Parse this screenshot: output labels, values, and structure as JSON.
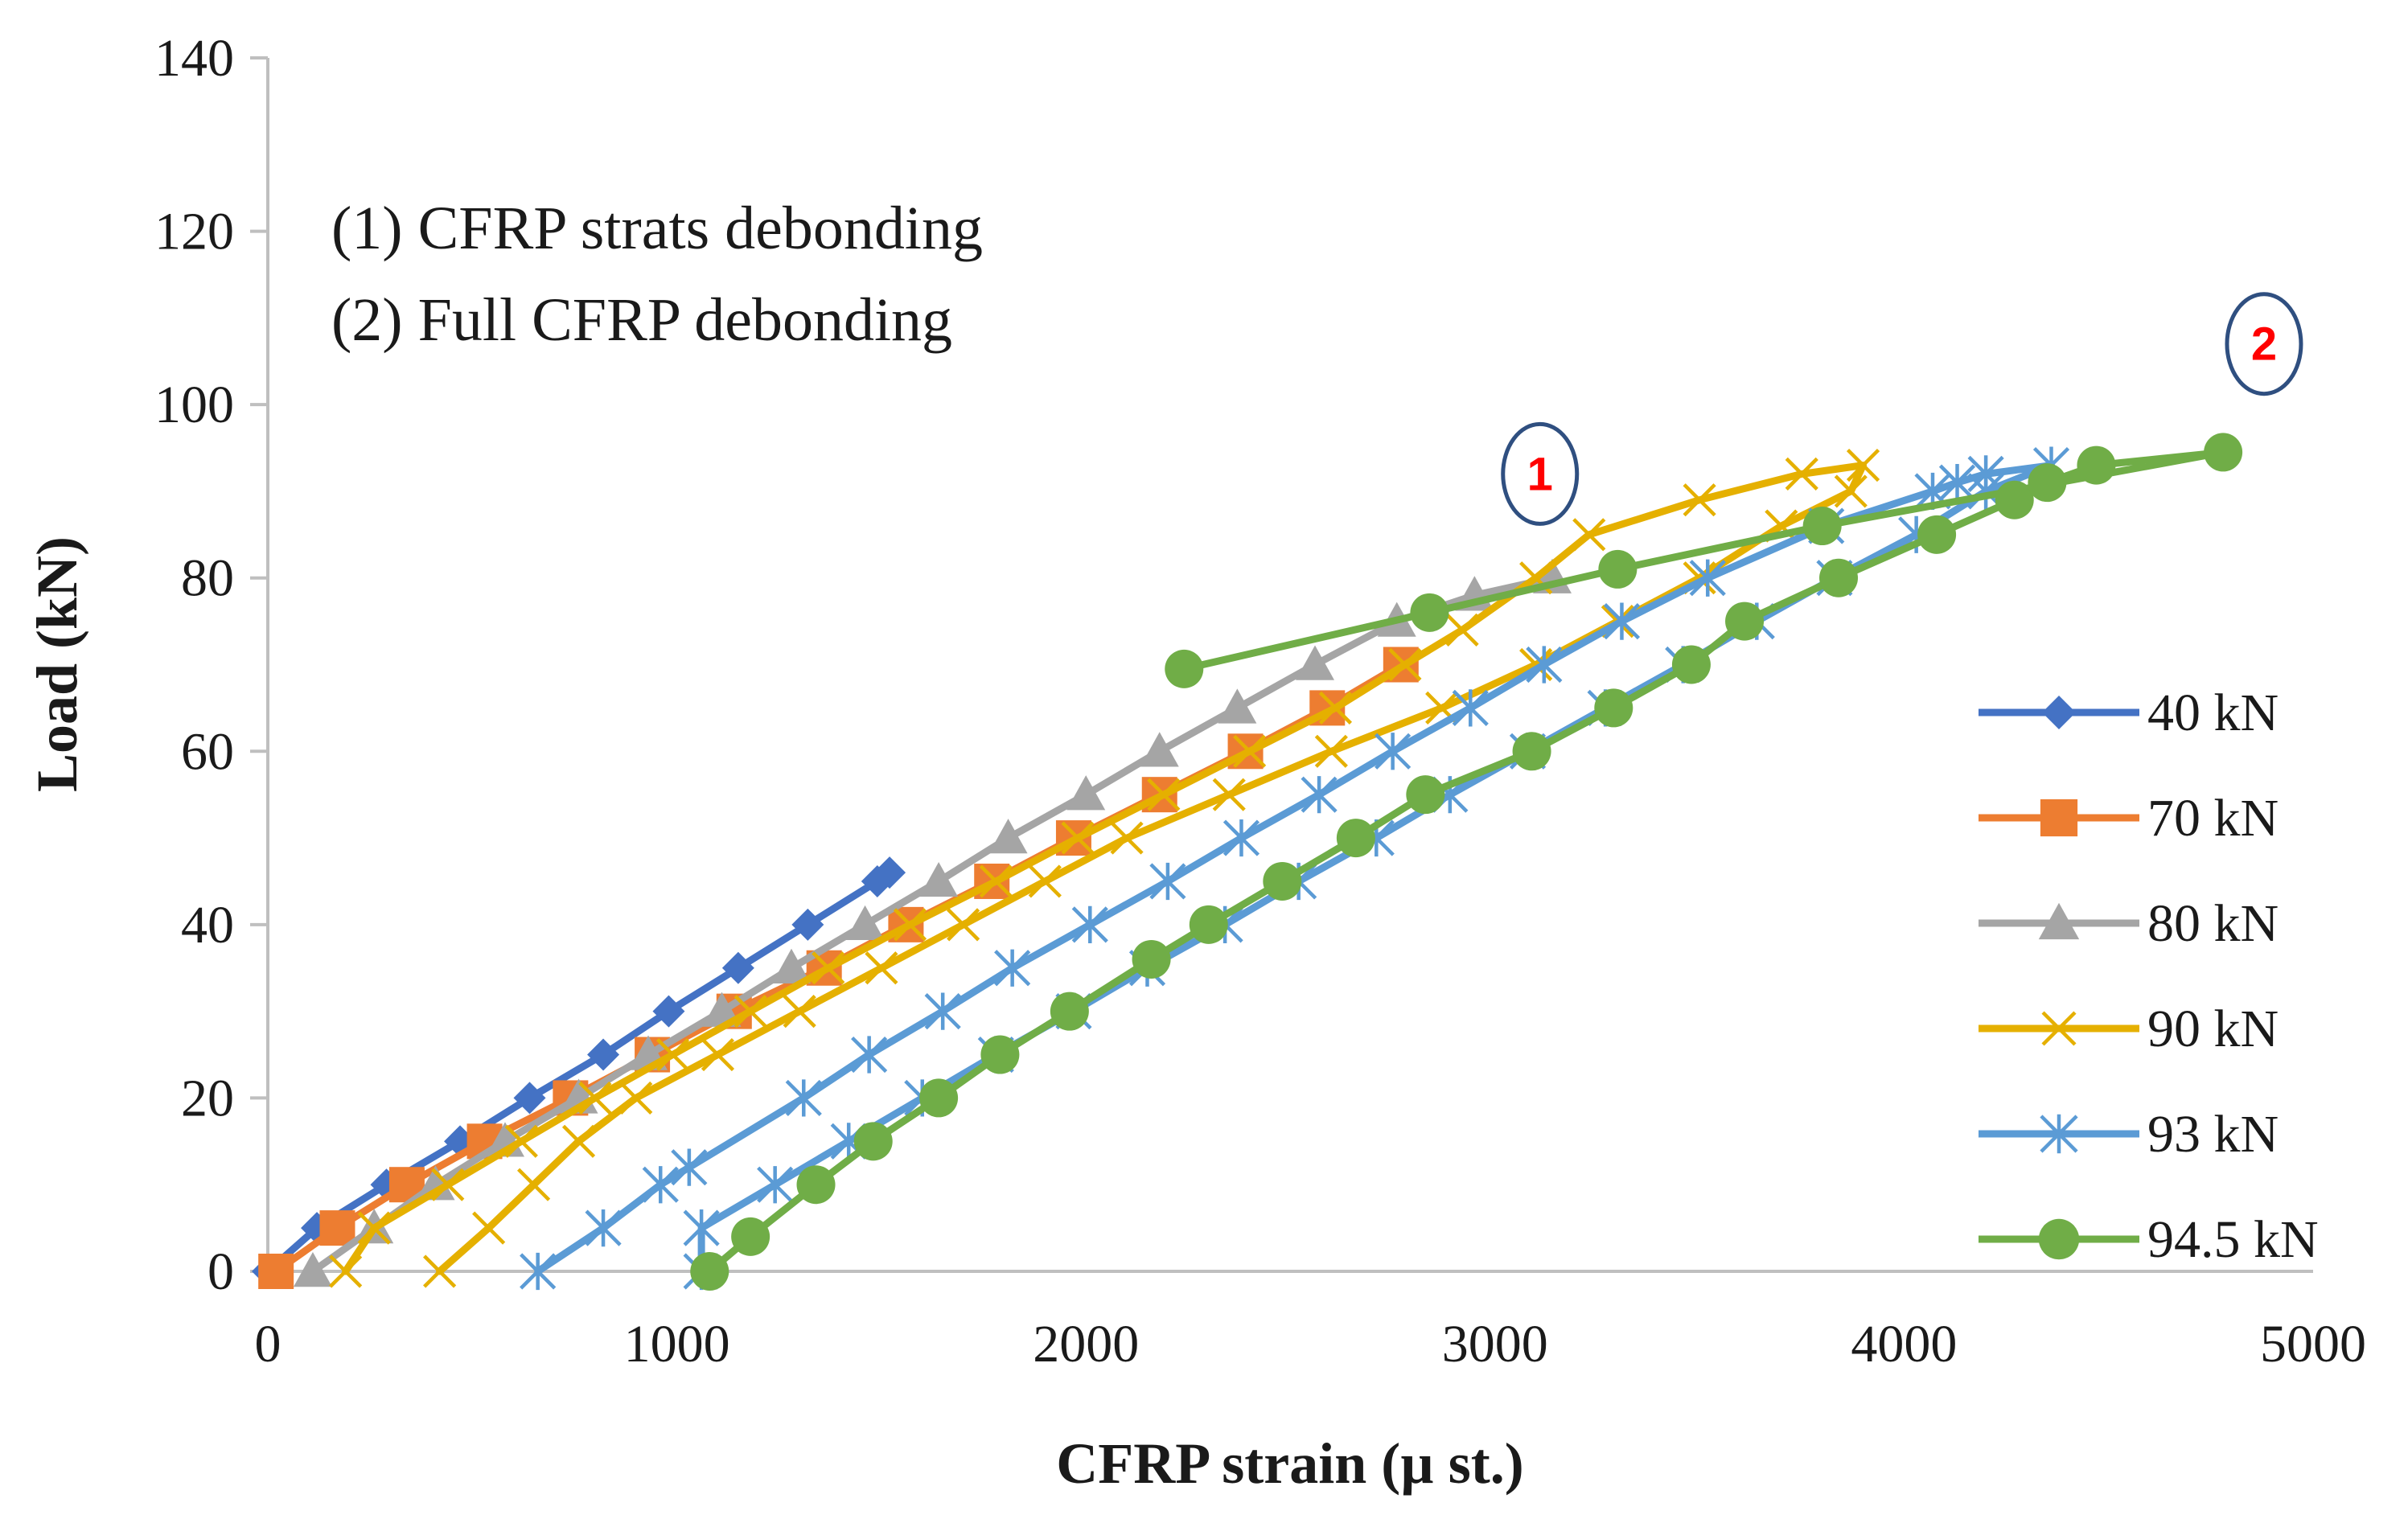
{
  "chart_data": {
    "type": "line",
    "title": "",
    "xlabel": "CFRP strain (µ st.)",
    "ylabel": "Load  (kN)",
    "xlim": [
      0,
      5000
    ],
    "ylim": [
      0,
      140
    ],
    "x_ticks": [
      "0",
      "1000",
      "2000",
      "3000",
      "4000",
      "5000"
    ],
    "y_ticks": [
      "0",
      "20",
      "40",
      "60",
      "80",
      "100",
      "120",
      "140"
    ],
    "grid": false,
    "legend_position": "right",
    "annotations": [
      "(1) CFRP strats debonding",
      "(2) Full CFRP debonding"
    ],
    "markers": [
      {
        "label": "1",
        "x": 3110,
        "y": 92
      },
      {
        "label": "2",
        "x": 4880,
        "y": 107
      }
    ],
    "series": [
      {
        "name": "40 kN",
        "color": "#4472C4",
        "marker": "diamond",
        "points": [
          [
            0,
            0
          ],
          [
            120,
            5
          ],
          [
            290,
            10
          ],
          [
            470,
            15
          ],
          [
            640,
            20
          ],
          [
            820,
            25
          ],
          [
            980,
            30
          ],
          [
            1150,
            35
          ],
          [
            1320,
            40
          ],
          [
            1490,
            45
          ],
          [
            1520,
            46
          ]
        ]
      },
      {
        "name": "70 kN",
        "color": "#ED7D31",
        "marker": "square",
        "points": [
          [
            20,
            0
          ],
          [
            170,
            5
          ],
          [
            340,
            10
          ],
          [
            530,
            15
          ],
          [
            740,
            20
          ],
          [
            940,
            25
          ],
          [
            1140,
            30
          ],
          [
            1360,
            35
          ],
          [
            1560,
            40
          ],
          [
            1770,
            45
          ],
          [
            1970,
            50
          ],
          [
            2180,
            55
          ],
          [
            2390,
            60
          ],
          [
            2590,
            65
          ],
          [
            2770,
            70
          ]
        ]
      },
      {
        "name": "80 kN",
        "color": "#A5A5A5",
        "marker": "triangle",
        "points": [
          [
            110,
            0
          ],
          [
            260,
            5
          ],
          [
            410,
            10
          ],
          [
            580,
            15
          ],
          [
            760,
            20
          ],
          [
            930,
            25
          ],
          [
            1110,
            30
          ],
          [
            1280,
            35
          ],
          [
            1460,
            40
          ],
          [
            1640,
            45
          ],
          [
            1810,
            50
          ],
          [
            2000,
            55
          ],
          [
            2180,
            60
          ],
          [
            2370,
            65
          ],
          [
            2560,
            70
          ],
          [
            2760,
            75
          ],
          [
            2950,
            78
          ],
          [
            3140,
            80
          ]
        ]
      },
      {
        "name": "90 kN",
        "color": "#E5B000",
        "marker": "x",
        "points": [
          [
            190,
            0
          ],
          [
            260,
            5
          ],
          [
            440,
            10
          ],
          [
            620,
            15
          ],
          [
            800,
            20
          ],
          [
            990,
            25
          ],
          [
            1180,
            30
          ],
          [
            1370,
            35
          ],
          [
            1570,
            40
          ],
          [
            1780,
            45
          ],
          [
            1980,
            50
          ],
          [
            2190,
            55
          ],
          [
            2400,
            60
          ],
          [
            2610,
            65
          ],
          [
            2780,
            70
          ],
          [
            2920,
            74
          ],
          [
            3100,
            80
          ],
          [
            3230,
            85
          ],
          [
            3500,
            89
          ],
          [
            3750,
            92
          ],
          [
            3900,
            93
          ],
          [
            3870,
            90
          ],
          [
            3700,
            86
          ],
          [
            3500,
            80
          ],
          [
            3300,
            75
          ],
          [
            3100,
            70
          ],
          [
            2870,
            65
          ],
          [
            2600,
            60
          ],
          [
            2350,
            55
          ],
          [
            2100,
            50
          ],
          [
            1900,
            45
          ],
          [
            1700,
            40
          ],
          [
            1500,
            35
          ],
          [
            1300,
            30
          ],
          [
            1100,
            25
          ],
          [
            900,
            20
          ],
          [
            760,
            15
          ],
          [
            650,
            10
          ],
          [
            540,
            5
          ],
          [
            420,
            0
          ]
        ]
      },
      {
        "name": "93 kN",
        "color": "#5B9BD5",
        "marker": "star",
        "points": [
          [
            660,
            0
          ],
          [
            820,
            5
          ],
          [
            960,
            10
          ],
          [
            1030,
            12
          ],
          [
            1310,
            20
          ],
          [
            1470,
            25
          ],
          [
            1650,
            30
          ],
          [
            1820,
            35
          ],
          [
            2010,
            40
          ],
          [
            2200,
            45
          ],
          [
            2380,
            50
          ],
          [
            2570,
            55
          ],
          [
            2750,
            60
          ],
          [
            2940,
            65
          ],
          [
            3120,
            70
          ],
          [
            3310,
            75
          ],
          [
            3520,
            80
          ],
          [
            3810,
            86
          ],
          [
            4070,
            90
          ],
          [
            4130,
            91
          ],
          [
            4200,
            92
          ],
          [
            4360,
            93
          ],
          [
            4200,
            90
          ],
          [
            4030,
            85
          ],
          [
            3830,
            80
          ],
          [
            3640,
            75
          ],
          [
            3460,
            70
          ],
          [
            3270,
            65
          ],
          [
            3080,
            60
          ],
          [
            2890,
            55
          ],
          [
            2710,
            50
          ],
          [
            2520,
            45
          ],
          [
            2340,
            40
          ],
          [
            2150,
            35
          ],
          [
            1970,
            30
          ],
          [
            1780,
            25
          ],
          [
            1600,
            20
          ],
          [
            1420,
            15
          ],
          [
            1240,
            10
          ],
          [
            1060,
            5
          ],
          [
            1060,
            0
          ]
        ]
      },
      {
        "name": "94.5 kN",
        "color": "#70AD47",
        "marker": "circle",
        "points": [
          [
            1080,
            0
          ],
          [
            1180,
            4
          ],
          [
            1340,
            10
          ],
          [
            1480,
            15
          ],
          [
            1640,
            20
          ],
          [
            1790,
            25
          ],
          [
            1960,
            30
          ],
          [
            2160,
            36
          ],
          [
            2300,
            40
          ],
          [
            2480,
            45
          ],
          [
            2660,
            50
          ],
          [
            2830,
            55
          ],
          [
            3090,
            60
          ],
          [
            3290,
            65
          ],
          [
            3480,
            70
          ],
          [
            3610,
            75
          ],
          [
            3840,
            80
          ],
          [
            4080,
            85
          ],
          [
            4270,
            89
          ],
          [
            4350,
            91
          ],
          [
            4470,
            93
          ],
          [
            4780,
            94.5
          ],
          [
            3800,
            86
          ],
          [
            3300,
            81
          ],
          [
            2840,
            76
          ],
          [
            2240,
            69.5
          ]
        ]
      }
    ]
  }
}
